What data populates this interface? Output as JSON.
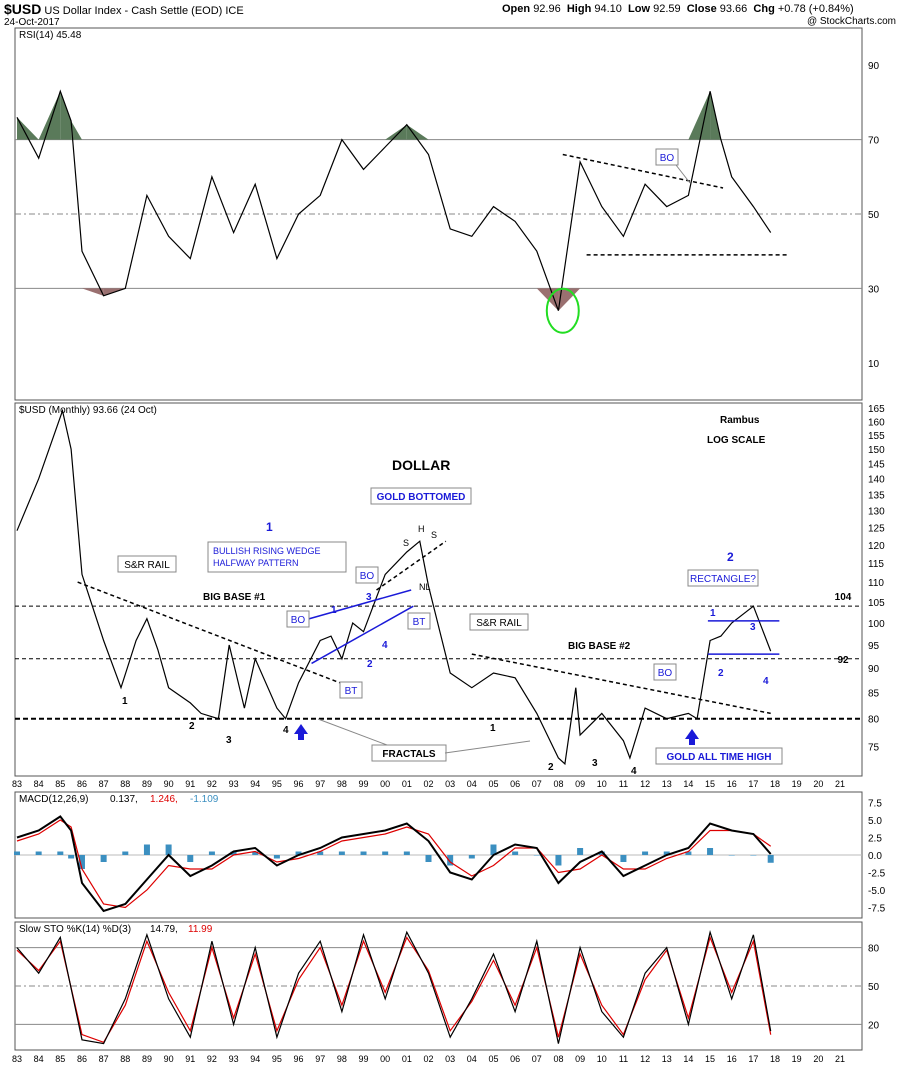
{
  "header": {
    "symbol": "$USD",
    "name": "US Dollar Index - Cash Settle (EOD) ICE",
    "date": "24-Oct-2017",
    "open_label": "Open",
    "open": "92.96",
    "high_label": "High",
    "high": "94.10",
    "low_label": "Low",
    "low": "92.59",
    "close_label": "Close",
    "close": "93.66",
    "chg_label": "Chg",
    "chg": "+0.78 (+0.84%)",
    "credit": "@ StockCharts.com"
  },
  "colors": {
    "grid": "#888888",
    "price": "#000000",
    "annotation_blue": "#1a1ad8",
    "rsi_overbought_fill": "#5a7a5a",
    "rsi_oversold_fill": "#9a7070",
    "highlight_circle": "#22dd22",
    "macd_signal": "#dd0000",
    "macd_hist": "#3b8fc0",
    "sto_d": "#dd0000",
    "sto_k": "#000000"
  },
  "chart_data": [
    {
      "type": "line",
      "panel": "rsi",
      "legend": [
        "RSI(14)",
        "45.48"
      ],
      "ylim": [
        0,
        100
      ],
      "yticks": [
        10,
        30,
        50,
        70,
        90
      ],
      "reference_lines": [
        30,
        50,
        70
      ],
      "x": [
        1983,
        1984,
        1985,
        1985.5,
        1986,
        1987,
        1988,
        1989,
        1990,
        1991,
        1992,
        1993,
        1994,
        1995,
        1996,
        1997,
        1998,
        1999,
        2000,
        2001,
        2002,
        2003,
        2004,
        2005,
        2006,
        2007,
        2008,
        2009,
        2010,
        2011,
        2012,
        2013,
        2014,
        2015,
        2015.5,
        2016,
        2017,
        2017.8
      ],
      "values": [
        76,
        65,
        83,
        75,
        40,
        28,
        30,
        55,
        44,
        38,
        60,
        45,
        58,
        38,
        50,
        55,
        70,
        62,
        68,
        74,
        66,
        46,
        44,
        52,
        48,
        40,
        24,
        64,
        52,
        44,
        58,
        52,
        55,
        83,
        70,
        60,
        52,
        45
      ],
      "annotations": {
        "bo": "BO"
      }
    },
    {
      "type": "line",
      "panel": "price",
      "legend": [
        "$USD (Monthly) 93.66 (24 Oct)"
      ],
      "title": "DOLLAR",
      "scale": "log",
      "ylim": [
        70,
        167
      ],
      "yticks": [
        75,
        80,
        85,
        90,
        95,
        100,
        105,
        110,
        115,
        120,
        125,
        130,
        135,
        140,
        145,
        150,
        155,
        160,
        165
      ],
      "xtick_labels": [
        "83",
        "84",
        "85",
        "86",
        "87",
        "88",
        "89",
        "90",
        "91",
        "92",
        "93",
        "94",
        "95",
        "96",
        "97",
        "98",
        "99",
        "00",
        "01",
        "02",
        "03",
        "04",
        "05",
        "06",
        "07",
        "08",
        "09",
        "10",
        "11",
        "12",
        "13",
        "14",
        "15",
        "16",
        "17",
        "18",
        "19",
        "20",
        "21"
      ],
      "reference_lines": [
        {
          "y": 104,
          "label": "104"
        },
        {
          "y": 92,
          "label": "92"
        },
        {
          "y": 80,
          "label": ""
        }
      ],
      "x": [
        1983,
        1984,
        1985.1,
        1985.5,
        1986,
        1987,
        1987.8,
        1988.5,
        1989,
        1989.5,
        1990,
        1991,
        1991.5,
        1992.3,
        1992.8,
        1993.5,
        1994,
        1995,
        1995.4,
        1996,
        1997,
        1997.5,
        1998,
        1998.5,
        1999,
        2000,
        2001,
        2001.6,
        2002,
        2003,
        2004,
        2005,
        2006,
        2007,
        2008,
        2008.3,
        2008.8,
        2009,
        2010,
        2011,
        2011.3,
        2012,
        2013,
        2014,
        2014.4,
        2015,
        2015.5,
        2016,
        2017,
        2017.8
      ],
      "values": [
        124,
        140,
        164,
        150,
        112,
        96,
        86,
        96,
        101,
        94,
        86,
        83,
        81,
        80,
        95,
        82,
        92,
        82,
        80,
        87,
        96,
        97,
        92,
        100,
        98,
        112,
        118,
        121,
        109,
        89,
        86,
        89,
        88,
        81,
        73,
        72,
        86,
        77,
        81,
        76,
        73,
        82,
        80,
        81,
        80,
        96,
        97,
        100,
        104,
        93.66
      ],
      "text": {
        "author": "Rambus",
        "scale_note": "LOG SCALE",
        "base1": "BIG BASE #1",
        "base2": "BIG BASE #2",
        "sr_rail": "S&R RAIL",
        "fractals": "FRACTALS",
        "wedge_number": "1",
        "wedge": [
          "BULLISH RISING WEDGE",
          "HALFWAY PATTERN"
        ],
        "gold_bottomed": "GOLD BOTTOMED",
        "rect_number": "2",
        "rectangle": "RECTANGLE?",
        "gold_high": "GOLD ALL TIME HIGH",
        "bo": "BO",
        "bt": "BT",
        "nl": "NL",
        "h": "H",
        "s": "S",
        "n1": "1",
        "n2": "2",
        "n3": "3",
        "n4": "4"
      }
    },
    {
      "type": "line",
      "panel": "macd",
      "legend": [
        "MACD(12,26,9)",
        "0.137,",
        "1.246,",
        "-1.109"
      ],
      "ylim": [
        -9,
        9
      ],
      "yticks": [
        -7.5,
        -5,
        -2.5,
        0,
        2.5,
        5,
        7.5
      ],
      "tick_labels": [
        "-7.5",
        "-5.0",
        "-2.5",
        "0.0",
        "2.5",
        "5.0",
        "7.5"
      ],
      "x": [
        1983,
        1984,
        1985,
        1985.5,
        1986,
        1987,
        1988,
        1989,
        1990,
        1991,
        1992,
        1993,
        1994,
        1995,
        1996,
        1997,
        1998,
        1999,
        2000,
        2001,
        2002,
        2003,
        2004,
        2005,
        2006,
        2007,
        2008,
        2009,
        2010,
        2011,
        2012,
        2013,
        2014,
        2015,
        2016,
        2017,
        2017.8
      ],
      "series": [
        {
          "name": "MACD",
          "values": [
            2.5,
            3.5,
            5.5,
            3.5,
            -4,
            -8,
            -7,
            -3.5,
            0,
            -3,
            -1.5,
            0.5,
            1,
            -1.5,
            0,
            1,
            2.5,
            3,
            3.5,
            4.5,
            2,
            -2.5,
            -3.5,
            0,
            1.5,
            1,
            -4,
            -1,
            0.5,
            -3,
            -1.5,
            0,
            1,
            4.5,
            3.5,
            3,
            0.137
          ]
        },
        {
          "name": "Signal",
          "values": [
            2,
            3,
            5,
            4,
            -2,
            -7,
            -7.5,
            -5,
            -1.5,
            -2,
            -2,
            0,
            0.5,
            -1,
            -0.5,
            0.5,
            2,
            2.5,
            3,
            4,
            3,
            -1,
            -3,
            -1.5,
            1,
            1,
            -2.5,
            -2,
            0,
            -2,
            -2,
            -0.5,
            0.5,
            3.5,
            3.5,
            3,
            1.246
          ]
        },
        {
          "name": "Histogram",
          "values": [
            0.5,
            0.5,
            0.5,
            -0.5,
            -2,
            -1,
            0.5,
            1.5,
            1.5,
            -1,
            0.5,
            0.5,
            0.5,
            -0.5,
            0.5,
            0.5,
            0.5,
            0.5,
            0.5,
            0.5,
            -1,
            -1.5,
            -0.5,
            1.5,
            0.5,
            0,
            -1.5,
            1,
            0.5,
            -1,
            0.5,
            0.5,
            0.5,
            1,
            0,
            0,
            -1.109
          ]
        }
      ]
    },
    {
      "type": "line",
      "panel": "slow_sto",
      "legend": [
        "Slow STO %K(14) %D(3)",
        "14.79,",
        "11.99"
      ],
      "ylim": [
        0,
        100
      ],
      "yticks": [
        20,
        50,
        80
      ],
      "reference_lines": [
        20,
        50,
        80
      ],
      "x": [
        1983,
        1984,
        1985,
        1986,
        1987,
        1988,
        1989,
        1990,
        1991,
        1992,
        1993,
        1994,
        1995,
        1996,
        1997,
        1998,
        1999,
        2000,
        2001,
        2002,
        2003,
        2004,
        2005,
        2006,
        2007,
        2008,
        2009,
        2010,
        2011,
        2012,
        2013,
        2014,
        2015,
        2016,
        2017,
        2017.8
      ],
      "series": [
        {
          "name": "%K",
          "values": [
            80,
            60,
            88,
            8,
            5,
            40,
            90,
            40,
            10,
            85,
            20,
            80,
            10,
            60,
            85,
            30,
            90,
            40,
            92,
            60,
            10,
            40,
            75,
            30,
            85,
            5,
            80,
            30,
            10,
            60,
            80,
            20,
            92,
            40,
            90,
            14.79
          ]
        },
        {
          "name": "%D",
          "values": [
            78,
            62,
            85,
            12,
            6,
            35,
            85,
            45,
            15,
            80,
            25,
            75,
            15,
            55,
            80,
            35,
            85,
            45,
            88,
            62,
            15,
            38,
            70,
            35,
            80,
            10,
            75,
            35,
            12,
            55,
            78,
            25,
            88,
            45,
            85,
            11.99
          ]
        }
      ]
    }
  ]
}
